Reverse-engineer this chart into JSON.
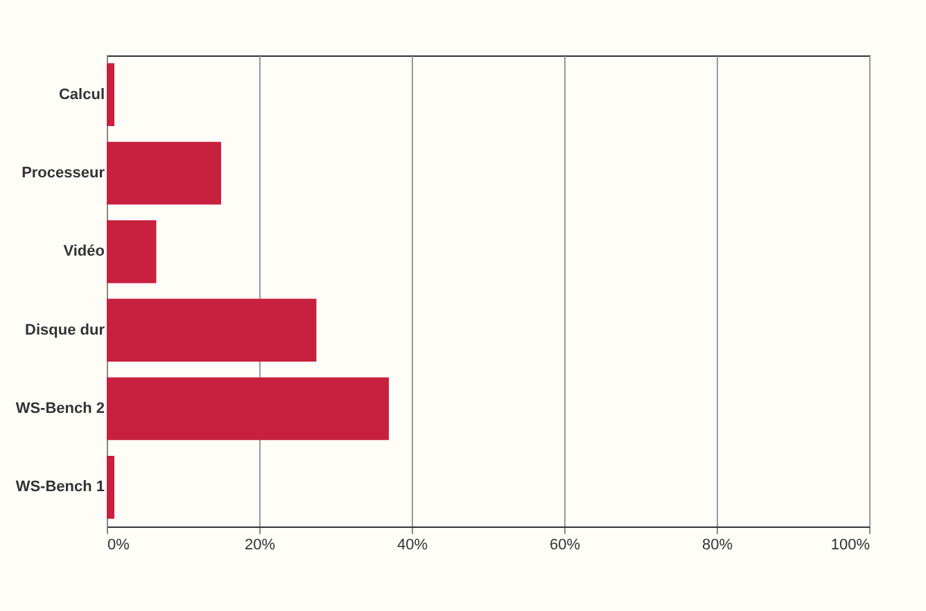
{
  "chart_data": {
    "type": "bar",
    "orientation": "horizontal",
    "categories": [
      "Calcul",
      "Processeur",
      "Vidéo",
      "Disque dur",
      "WS-Bench 2",
      "WS-Bench 1"
    ],
    "values": [
      1,
      15,
      6.5,
      27.5,
      37,
      1
    ],
    "color": "#c8203f",
    "xlim": [
      0,
      100
    ],
    "xticks": [
      {
        "value": 0,
        "label": "0%"
      },
      {
        "value": 20,
        "label": "20%"
      },
      {
        "value": 40,
        "label": "40%"
      },
      {
        "value": 60,
        "label": "60%"
      },
      {
        "value": 80,
        "label": "80%"
      },
      {
        "value": 100,
        "label": "100%"
      }
    ],
    "grid": "x"
  }
}
